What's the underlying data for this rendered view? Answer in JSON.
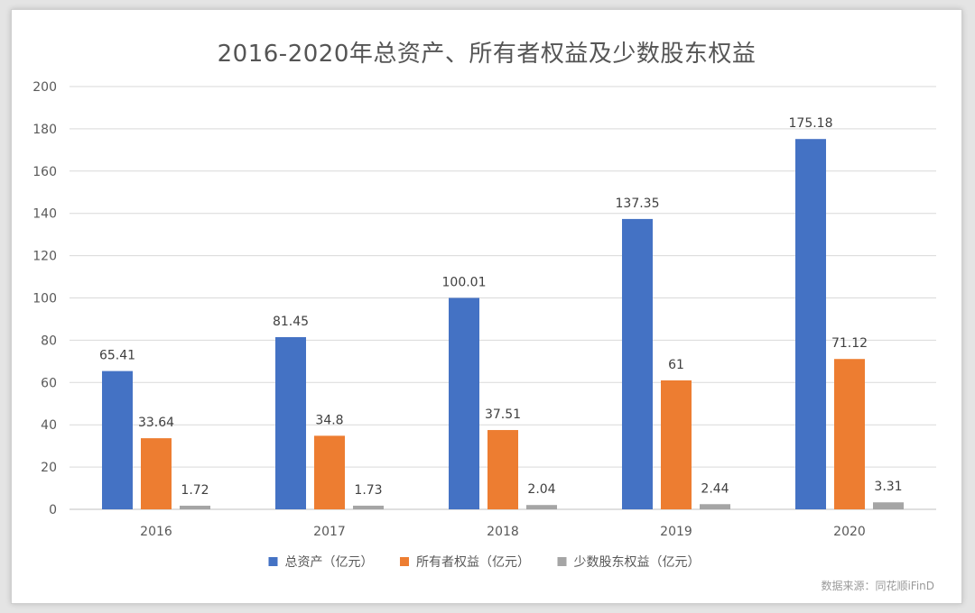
{
  "chart_data": {
    "type": "bar",
    "title": "2016-2020年总资产、所有者权益及少数股东权益",
    "categories": [
      "2016",
      "2017",
      "2018",
      "2019",
      "2020"
    ],
    "series": [
      {
        "name": "总资产（亿元）",
        "values": [
          65.41,
          81.45,
          100.01,
          137.35,
          175.18
        ],
        "labels": [
          "65.41",
          "81.45",
          "100.01",
          "137.35",
          "175.18"
        ],
        "color": "#4472C4"
      },
      {
        "name": "所有者权益（亿元）",
        "values": [
          33.64,
          34.8,
          37.51,
          61,
          71.12
        ],
        "labels": [
          "33.64",
          "34.8",
          "37.51",
          "61",
          "71.12"
        ],
        "color": "#ED7D31"
      },
      {
        "name": "少数股东权益（亿元）",
        "values": [
          1.72,
          1.73,
          2.04,
          2.44,
          3.31
        ],
        "labels": [
          "1.72",
          "1.73",
          "2.04",
          "2.44",
          "3.31"
        ],
        "color": "#A5A5A5"
      }
    ],
    "ylim": [
      0,
      200
    ],
    "yticks": [
      0,
      20,
      40,
      60,
      80,
      100,
      120,
      140,
      160,
      180,
      200
    ],
    "grid": true,
    "legend": "bottom",
    "xlabel": "",
    "ylabel": ""
  },
  "source": "数据来源：同花顺iFinD"
}
